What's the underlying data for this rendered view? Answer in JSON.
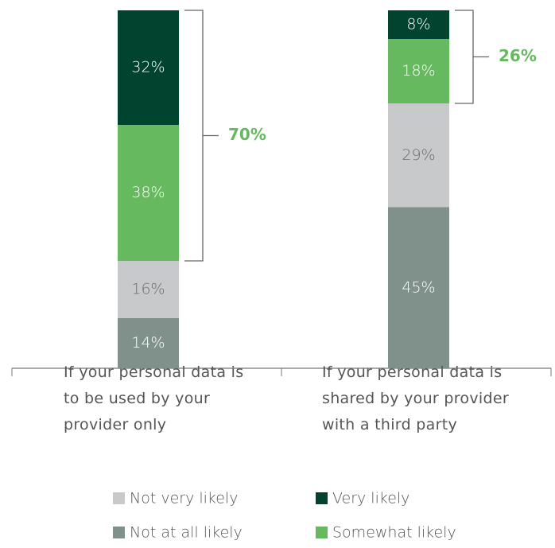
{
  "chart_data": {
    "type": "stacked_bar",
    "categories": [
      "If your personal data is to be used by your provider only",
      "If your personal data is shared by your provider with a third party"
    ],
    "series": [
      {
        "name": "Not at all likely",
        "color": "#7f918a",
        "values": [
          14,
          45
        ],
        "value_labels": [
          "14%",
          "45%"
        ]
      },
      {
        "name": "Not very likely",
        "color": "#c8c9cb",
        "values": [
          16,
          29
        ],
        "value_labels": [
          "16%",
          "29%"
        ]
      },
      {
        "name": "Somewhat likely",
        "color": "#66b95f",
        "values": [
          38,
          18
        ],
        "value_labels": [
          "38%",
          "18%"
        ]
      },
      {
        "name": "Very likely",
        "color": "#00432f",
        "values": [
          32,
          8
        ],
        "value_labels": [
          "32%",
          "8%"
        ]
      }
    ],
    "totals": {
      "values": [
        70,
        26
      ],
      "value_labels": [
        "70%",
        "26%"
      ],
      "color": "#66b95f"
    },
    "ylim": [
      0,
      100
    ]
  }
}
